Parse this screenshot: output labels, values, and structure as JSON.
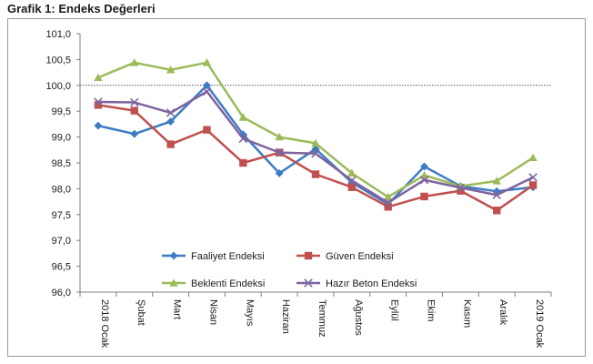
{
  "page": {
    "title": "Grafik 1: Endeks Değerleri"
  },
  "chart_data": {
    "type": "line",
    "title": "",
    "xlabel": "",
    "ylabel": "",
    "categories": [
      "2018 Ocak",
      "Şubat",
      "Mart",
      "Nisan",
      "Mayıs",
      "Haziran",
      "Temmuz",
      "Ağustos",
      "Eylül",
      "Ekim",
      "Kasım",
      "Aralık",
      "2019 Ocak"
    ],
    "ylim": [
      96.0,
      101.0
    ],
    "yticks": [
      "96,0",
      "96,5",
      "97,0",
      "97,5",
      "98,0",
      "98,5",
      "99,0",
      "99,5",
      "100,0",
      "100,5",
      "101,0"
    ],
    "reference_line": 100.0,
    "legend_position": "bottom",
    "series": [
      {
        "name": "Faaliyet Endeksi",
        "color": "#3d7cc4",
        "marker": "diamond",
        "values": [
          99.22,
          99.06,
          99.3,
          100.0,
          99.05,
          98.3,
          98.77,
          98.12,
          97.7,
          98.43,
          98.05,
          97.95,
          98.03
        ]
      },
      {
        "name": "Güven Endeksi",
        "color": "#c0504d",
        "marker": "square",
        "values": [
          99.62,
          99.51,
          98.86,
          99.14,
          98.5,
          98.7,
          98.28,
          98.03,
          97.65,
          97.85,
          97.96,
          97.58,
          98.07
        ]
      },
      {
        "name": "Beklenti Endeksi",
        "color": "#9bbb59",
        "marker": "triangle",
        "values": [
          100.15,
          100.44,
          100.3,
          100.44,
          99.38,
          99.0,
          98.88,
          98.3,
          97.84,
          98.26,
          98.05,
          98.15,
          98.6
        ]
      },
      {
        "name": "Hazır Beton Endeksi",
        "color": "#7e64a0",
        "marker": "x",
        "values": [
          99.68,
          99.67,
          99.47,
          99.88,
          98.97,
          98.7,
          98.68,
          98.16,
          97.73,
          98.17,
          98.02,
          97.88,
          98.22
        ]
      }
    ]
  }
}
